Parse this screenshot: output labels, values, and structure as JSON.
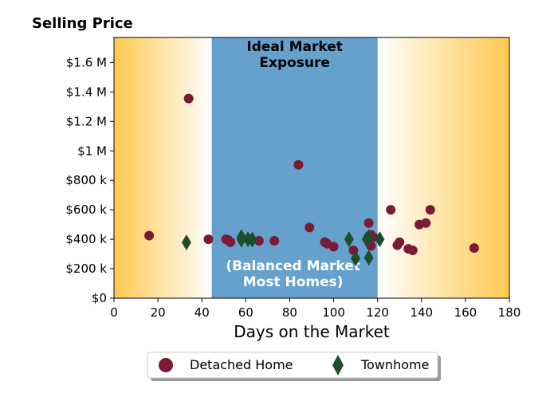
{
  "chart_data": {
    "type": "scatter",
    "title": "Selling Price",
    "xlabel": "Days on the Market",
    "ylabel": "",
    "xlim": [
      0,
      180
    ],
    "ylim": [
      0,
      1770000
    ],
    "x_ticks": [
      0,
      20,
      40,
      60,
      80,
      100,
      120,
      140,
      160,
      180
    ],
    "x_tick_labels": [
      "0",
      "20",
      "40",
      "60",
      "80",
      "100",
      "120",
      "140",
      "160",
      "180"
    ],
    "y_ticks": [
      0,
      200000,
      400000,
      600000,
      800000,
      1000000,
      1200000,
      1400000,
      1600000
    ],
    "y_tick_labels": [
      "$0",
      "$200 k",
      "$400 k",
      "$600 k",
      "$800 k",
      "$1 M",
      "$1.2 M",
      "$1.4 M",
      "$1.6 M"
    ],
    "grid": false,
    "legend_position": "bottom-center",
    "bands": [
      {
        "x_range": [
          44.5,
          120
        ],
        "color": "#66a0cd",
        "label_top_lines": [
          "Ideal Market",
          "Exposure"
        ],
        "label_bottom_lines": [
          "(Balanced Market",
          "Most Homes)"
        ]
      }
    ],
    "background_gradient": {
      "edge_color": "#ffc94f",
      "center_color": "#ffffff"
    },
    "series": [
      {
        "name": "Detached Home",
        "marker": "circle",
        "color": "#7a1a35",
        "points": [
          [
            16,
            425000
          ],
          [
            34,
            1355000
          ],
          [
            43,
            400000
          ],
          [
            51,
            400000
          ],
          [
            52,
            395000
          ],
          [
            53,
            380000
          ],
          [
            66,
            390000
          ],
          [
            73,
            390000
          ],
          [
            84,
            905000
          ],
          [
            89,
            480000
          ],
          [
            96,
            380000
          ],
          [
            97,
            370000
          ],
          [
            100,
            350000
          ],
          [
            109,
            325000
          ],
          [
            116,
            510000
          ],
          [
            117,
            430000
          ],
          [
            117,
            355000
          ],
          [
            118,
            415000
          ],
          [
            126,
            600000
          ],
          [
            129,
            360000
          ],
          [
            130,
            380000
          ],
          [
            134,
            335000
          ],
          [
            136,
            325000
          ],
          [
            139,
            500000
          ],
          [
            142,
            510000
          ],
          [
            144,
            600000
          ],
          [
            164,
            340000
          ]
        ]
      },
      {
        "name": "Townhome",
        "marker": "diamond",
        "color": "#1e4d2b",
        "points": [
          [
            33,
            378000
          ],
          [
            58,
            415000
          ],
          [
            58,
            398000
          ],
          [
            61,
            400000
          ],
          [
            63,
            398000
          ],
          [
            107,
            400000
          ],
          [
            110,
            270000
          ],
          [
            115,
            400000
          ],
          [
            116,
            275000
          ],
          [
            116,
            415000
          ],
          [
            121,
            400000
          ]
        ]
      }
    ]
  }
}
